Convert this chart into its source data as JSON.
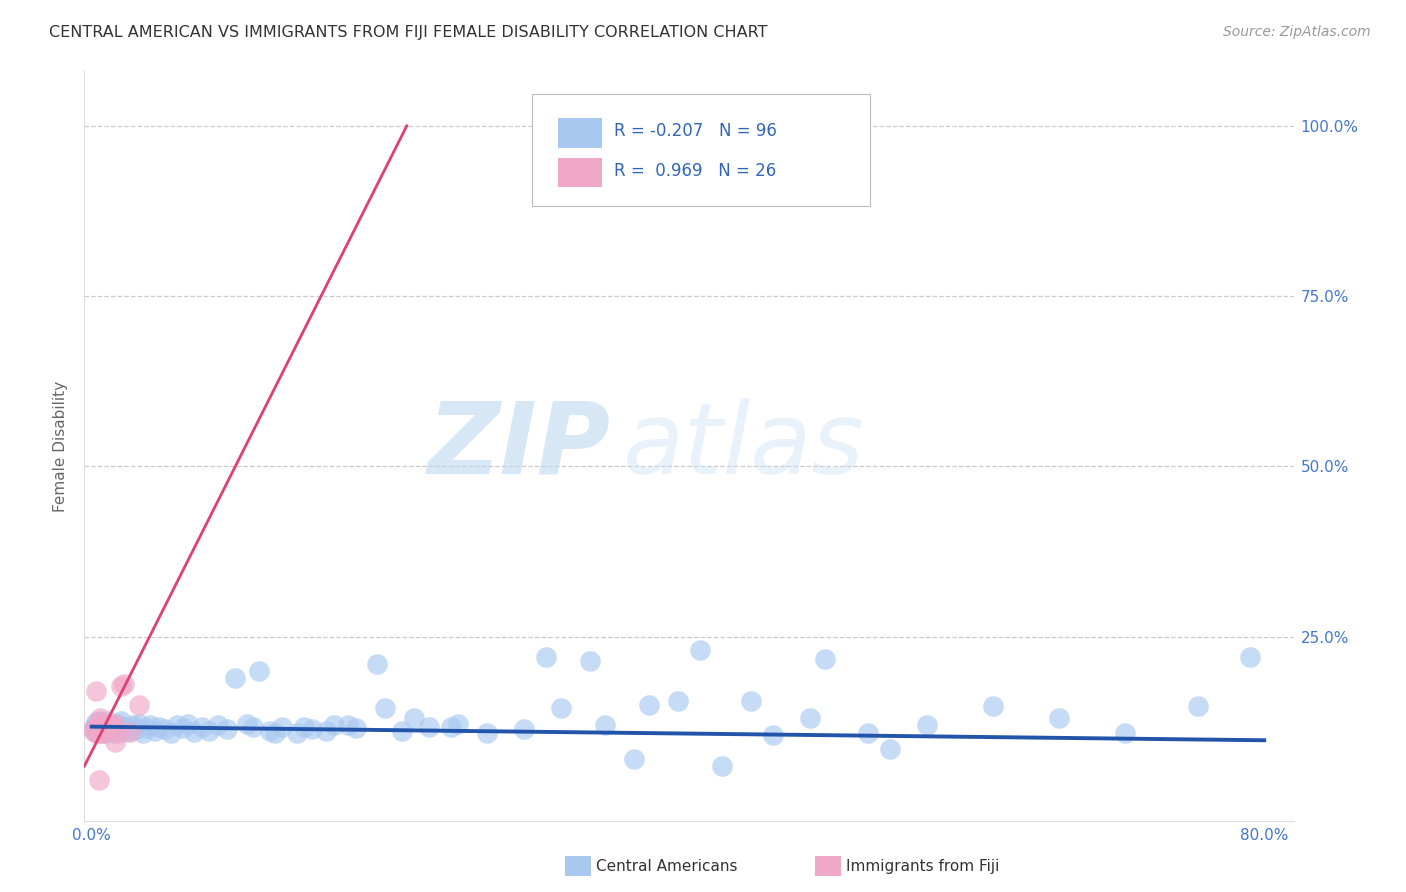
{
  "title": "CENTRAL AMERICAN VS IMMIGRANTS FROM FIJI FEMALE DISABILITY CORRELATION CHART",
  "source": "Source: ZipAtlas.com",
  "ylabel": "Female Disability",
  "xlim": [
    -0.005,
    0.82
  ],
  "ylim": [
    -0.02,
    1.08
  ],
  "xticks": [
    0.0,
    0.1,
    0.2,
    0.3,
    0.4,
    0.5,
    0.6,
    0.7,
    0.8
  ],
  "xticklabels": [
    "0.0%",
    "",
    "",
    "",
    "",
    "",
    "",
    "",
    "80.0%"
  ],
  "yticks": [
    0.0,
    0.25,
    0.5,
    0.75,
    1.0
  ],
  "yticklabels": [
    "",
    "25.0%",
    "50.0%",
    "75.0%",
    "100.0%"
  ],
  "blue_color": "#a8c8f0",
  "pink_color": "#f0a8c8",
  "blue_line_color": "#2255aa",
  "pink_line_color": "#e04070",
  "grid_color": "#cccccc",
  "blue_scatter_x": [
    0.001,
    0.002,
    0.003,
    0.003,
    0.004,
    0.004,
    0.005,
    0.005,
    0.006,
    0.006,
    0.007,
    0.007,
    0.008,
    0.008,
    0.009,
    0.009,
    0.01,
    0.01,
    0.011,
    0.011,
    0.012,
    0.013,
    0.014,
    0.015,
    0.016,
    0.017,
    0.018,
    0.019,
    0.02,
    0.022,
    0.024,
    0.026,
    0.028,
    0.03,
    0.032,
    0.035,
    0.038,
    0.04,
    0.043,
    0.046,
    0.05,
    0.054,
    0.058,
    0.062,
    0.066,
    0.07,
    0.075,
    0.08,
    0.086,
    0.092,
    0.098,
    0.106,
    0.114,
    0.122,
    0.13,
    0.14,
    0.15,
    0.165,
    0.18,
    0.195,
    0.212,
    0.23,
    0.25,
    0.27,
    0.295,
    0.32,
    0.35,
    0.38,
    0.415,
    0.45,
    0.49,
    0.53,
    0.57,
    0.615,
    0.66,
    0.705,
    0.755,
    0.79,
    0.11,
    0.125,
    0.145,
    0.16,
    0.175,
    0.2,
    0.22,
    0.245,
    0.31,
    0.34,
    0.37,
    0.4,
    0.43,
    0.465,
    0.5,
    0.545
  ],
  "blue_scatter_y": [
    0.115,
    0.12,
    0.11,
    0.125,
    0.108,
    0.118,
    0.112,
    0.122,
    0.116,
    0.126,
    0.11,
    0.12,
    0.114,
    0.124,
    0.108,
    0.118,
    0.112,
    0.122,
    0.116,
    0.126,
    0.11,
    0.12,
    0.114,
    0.108,
    0.118,
    0.112,
    0.122,
    0.116,
    0.126,
    0.11,
    0.118,
    0.112,
    0.12,
    0.114,
    0.122,
    0.108,
    0.116,
    0.12,
    0.112,
    0.118,
    0.114,
    0.108,
    0.12,
    0.116,
    0.122,
    0.11,
    0.118,
    0.112,
    0.12,
    0.114,
    0.19,
    0.122,
    0.2,
    0.112,
    0.118,
    0.108,
    0.114,
    0.12,
    0.116,
    0.21,
    0.112,
    0.118,
    0.122,
    0.108,
    0.114,
    0.145,
    0.12,
    0.15,
    0.23,
    0.155,
    0.13,
    0.108,
    0.12,
    0.148,
    0.13,
    0.108,
    0.148,
    0.22,
    0.118,
    0.108,
    0.118,
    0.112,
    0.12,
    0.145,
    0.13,
    0.118,
    0.22,
    0.215,
    0.07,
    0.155,
    0.06,
    0.105,
    0.218,
    0.085
  ],
  "pink_scatter_x": [
    0.001,
    0.002,
    0.003,
    0.004,
    0.005,
    0.006,
    0.007,
    0.008,
    0.01,
    0.012,
    0.015,
    0.018,
    0.022,
    0.026,
    0.032,
    0.014,
    0.009,
    0.003,
    0.004,
    0.006,
    0.008,
    0.012,
    0.016,
    0.02,
    0.005,
    0.007
  ],
  "pink_scatter_y": [
    0.112,
    0.118,
    0.108,
    0.115,
    0.12,
    0.13,
    0.11,
    0.108,
    0.112,
    0.118,
    0.122,
    0.108,
    0.18,
    0.11,
    0.15,
    0.12,
    0.115,
    0.17,
    0.115,
    0.125,
    0.118,
    0.115,
    0.095,
    0.178,
    0.04,
    0.108
  ],
  "pink_trendline_x": [
    -0.005,
    0.215
  ],
  "pink_trendline_y": [
    0.06,
    1.0
  ],
  "blue_trendline_x": [
    0.0,
    0.8
  ],
  "blue_trendline_y": [
    0.118,
    0.098
  ]
}
